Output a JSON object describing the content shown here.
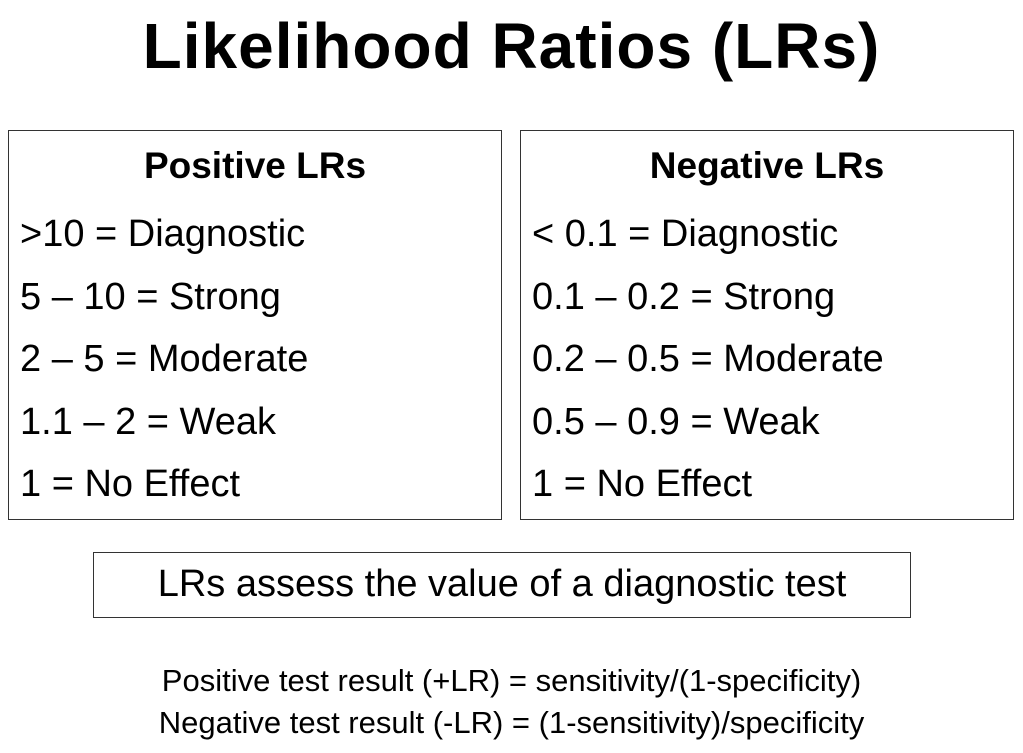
{
  "title": "Likelihood Ratios (LRs)",
  "positive": {
    "heading": "Positive LRs",
    "rows": [
      ">10 = Diagnostic",
      "5 – 10 = Strong",
      "2 – 5 = Moderate",
      "1.1 – 2 = Weak",
      "1 = No Effect"
    ]
  },
  "negative": {
    "heading": "Negative LRs",
    "rows": [
      "< 0.1 = Diagnostic",
      "0.1 – 0.2 = Strong",
      "0.2 – 0.5 = Moderate",
      "0.5 – 0.9 = Weak",
      "1 = No Effect"
    ]
  },
  "note": "LRs assess the value of a diagnostic test",
  "formulas": {
    "positive": "Positive test result (+LR) = sensitivity/(1-specificity)",
    "negative": "Negative test result (-LR) = (1-sensitivity)/specificity"
  }
}
